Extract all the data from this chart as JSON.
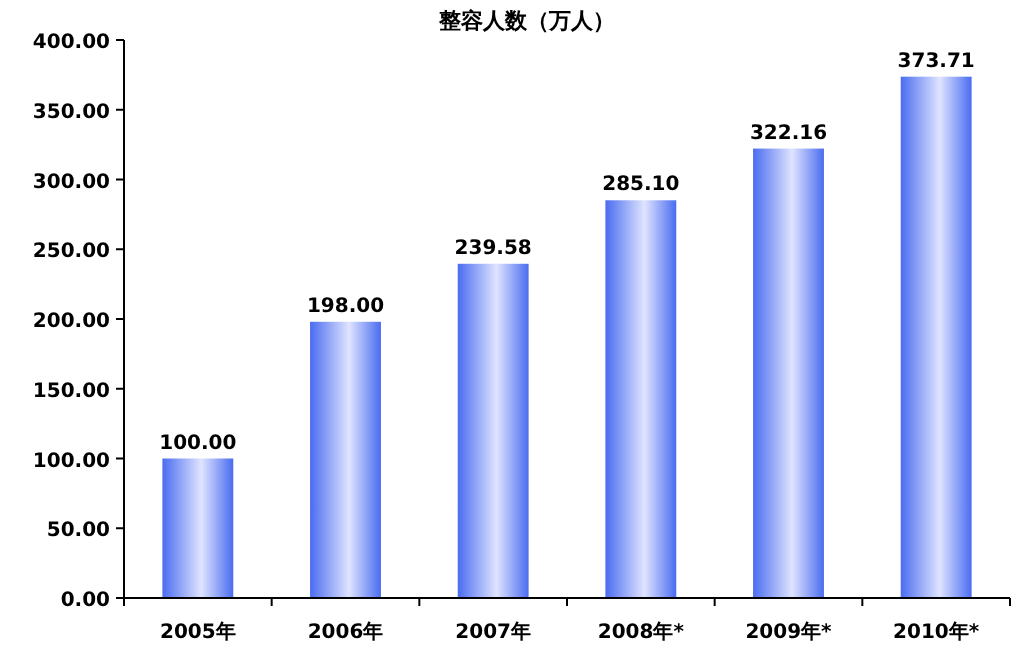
{
  "chart_data": {
    "type": "bar",
    "title": "整容人数（万人）",
    "categories": [
      "2005年",
      "2006年",
      "2007年",
      "2008年*",
      "2009年*",
      "2010年*"
    ],
    "values": [
      100.0,
      198.0,
      239.58,
      285.1,
      322.16,
      373.71
    ],
    "value_labels": [
      "100.00",
      "198.00",
      "239.58",
      "285.10",
      "322.16",
      "373.71"
    ],
    "color": "#4a6cf0",
    "ylim": [
      0,
      400
    ],
    "yticks": [
      {
        "value": 0,
        "label": "0.00"
      },
      {
        "value": 50,
        "label": "50.00"
      },
      {
        "value": 100,
        "label": "100.00"
      },
      {
        "value": 150,
        "label": "150.00"
      },
      {
        "value": 200,
        "label": "200.00"
      },
      {
        "value": 250,
        "label": "250.00"
      },
      {
        "value": 300,
        "label": "300.00"
      },
      {
        "value": 350,
        "label": "350.00"
      },
      {
        "value": 400,
        "label": "400.00"
      }
    ],
    "grid": false
  }
}
